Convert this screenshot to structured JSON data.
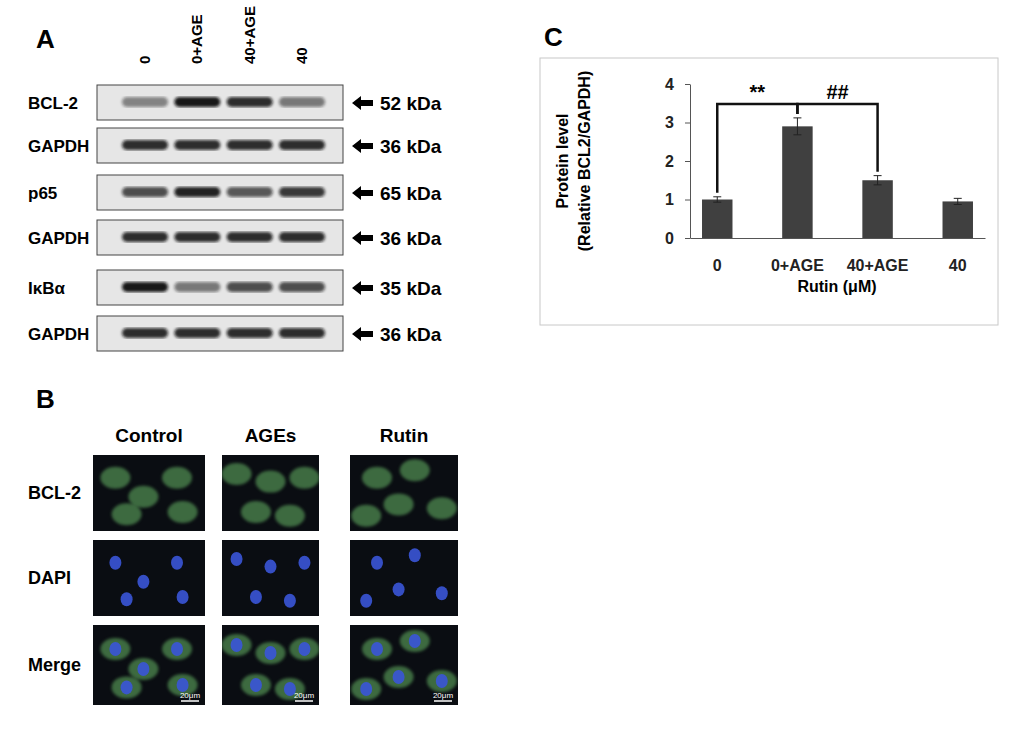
{
  "panels": {
    "A": {
      "label": "A",
      "lanes": [
        "0",
        "0+AGE",
        "40+AGE",
        "40"
      ],
      "rows": [
        {
          "name": "BCL-2",
          "size": "52 kDa",
          "intensity": [
            0.45,
            0.95,
            0.85,
            0.5
          ]
        },
        {
          "name": "GAPDH",
          "size": "36 kDa",
          "intensity": [
            0.85,
            0.85,
            0.85,
            0.85
          ]
        },
        {
          "name": "p65",
          "size": "65 kDa",
          "intensity": [
            0.7,
            0.9,
            0.65,
            0.8
          ]
        },
        {
          "name": "GAPDH",
          "size": "36 kDa",
          "intensity": [
            0.85,
            0.85,
            0.85,
            0.85
          ]
        },
        {
          "name": "IκBα",
          "size": "35 kDa",
          "intensity": [
            0.95,
            0.5,
            0.7,
            0.7
          ]
        },
        {
          "name": "GAPDH",
          "size": "36 kDa",
          "intensity": [
            0.85,
            0.85,
            0.85,
            0.85
          ]
        }
      ]
    },
    "B": {
      "label": "B",
      "columns": [
        "Control",
        "AGEs",
        "Rutin"
      ],
      "rows": [
        "BCL-2",
        "DAPI",
        "Merge"
      ],
      "scale_bar": "20μm"
    },
    "C": {
      "label": "C"
    }
  },
  "chart_data": {
    "type": "bar",
    "categories": [
      "0",
      "0+AGE",
      "40+AGE",
      "40"
    ],
    "values": [
      1.0,
      2.9,
      1.5,
      0.95
    ],
    "errors": [
      0.07,
      0.22,
      0.12,
      0.08
    ],
    "color": "#404040",
    "ylim": [
      0,
      4
    ],
    "yticks": [
      0,
      1,
      2,
      3,
      4
    ],
    "grid": false,
    "y_label": [
      "Protein level",
      "(Relative BCL2/GAPDH)"
    ],
    "x_label": "Rutin (μM)",
    "annotations": [
      {
        "text": "**",
        "from": 0,
        "to": 1
      },
      {
        "text": "##",
        "from": 1,
        "to": 2
      }
    ]
  }
}
